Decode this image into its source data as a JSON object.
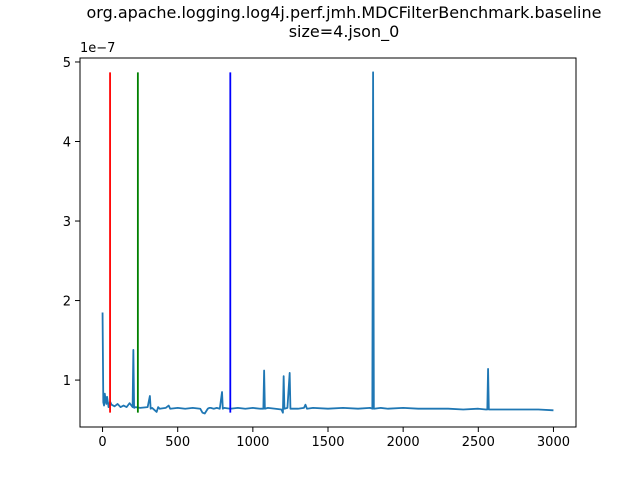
{
  "chart_data": {
    "type": "line",
    "title": "org.apache.logging.log4j.perf.jmh.MDCFilterBenchmark.baseline",
    "subtitle": "size=4.json_0",
    "xlabel": "",
    "ylabel": "",
    "y_offset_label": "1e−7",
    "xlim": [
      -150,
      3150
    ],
    "ylim": [
      4.1e-08,
      5.05e-07
    ],
    "x_ticks": [
      0,
      500,
      1000,
      1500,
      2000,
      2500,
      3000
    ],
    "x_tick_labels": [
      "0",
      "500",
      "1000",
      "1500",
      "2000",
      "2500",
      "3000"
    ],
    "y_ticks": [
      1e-07,
      2e-07,
      3e-07,
      4e-07,
      5e-07
    ],
    "y_tick_labels": [
      "1",
      "2",
      "3",
      "4",
      "5"
    ],
    "grid": false,
    "series": [
      {
        "color": "#1f77b4",
        "x": [
          0,
          5,
          10,
          15,
          20,
          25,
          30,
          40,
          50,
          60,
          80,
          100,
          120,
          140,
          160,
          180,
          200,
          205,
          210,
          220,
          250,
          300,
          315,
          320,
          330,
          360,
          370,
          380,
          420,
          440,
          450,
          500,
          550,
          600,
          650,
          665,
          680,
          700,
          710,
          720,
          740,
          760,
          780,
          795,
          800,
          810,
          850,
          900,
          950,
          1000,
          1050,
          1070,
          1075,
          1080,
          1100,
          1150,
          1190,
          1200,
          1205,
          1210,
          1230,
          1245,
          1250,
          1300,
          1340,
          1350,
          1360,
          1400,
          1500,
          1600,
          1700,
          1780,
          1795,
          1800,
          1805,
          1850,
          1900,
          2000,
          2100,
          2200,
          2300,
          2400,
          2500,
          2550,
          2560,
          2565,
          2570,
          2600,
          2700,
          2800,
          2900,
          3000
        ],
        "y": [
          1.85e-07,
          7.2e-08,
          6.8e-08,
          8.3e-08,
          7.5e-08,
          7e-08,
          7.9e-08,
          6.6e-08,
          7.3e-08,
          6.9e-08,
          6.7e-08,
          7e-08,
          6.6e-08,
          6.8e-08,
          6.6e-08,
          7.1e-08,
          6.6e-08,
          1.38e-07,
          6.5e-08,
          6.6e-08,
          6.5e-08,
          6.6e-08,
          8e-08,
          6.4e-08,
          6.5e-08,
          6e-08,
          6.6e-08,
          6.4e-08,
          6.5e-08,
          6.8e-08,
          6.4e-08,
          6.5e-08,
          6.4e-08,
          6.5e-08,
          6.4e-08,
          5.9e-08,
          5.8e-08,
          6.4e-08,
          6.5e-08,
          6.5e-08,
          6.4e-08,
          6.5e-08,
          6.4e-08,
          8.5e-08,
          6.4e-08,
          6.5e-08,
          6.4e-08,
          6.5e-08,
          6.4e-08,
          6.5e-08,
          6.4e-08,
          6.4e-08,
          1.12e-07,
          6.4e-08,
          6.5e-08,
          6.4e-08,
          6.3e-08,
          5.9e-08,
          1.05e-07,
          6.4e-08,
          6.5e-08,
          1.09e-07,
          6.4e-08,
          6.4e-08,
          6.5e-08,
          6.9e-08,
          6.4e-08,
          6.5e-08,
          6.4e-08,
          6.5e-08,
          6.4e-08,
          6.5e-08,
          6.4e-08,
          4.87e-07,
          6.4e-08,
          6.5e-08,
          6.4e-08,
          6.5e-08,
          6.4e-08,
          6.4e-08,
          6.4e-08,
          6.3e-08,
          6.4e-08,
          6.3e-08,
          6.3e-08,
          1.14e-07,
          6.3e-08,
          6.3e-08,
          6.3e-08,
          6.3e-08,
          6.3e-08,
          6.2e-08
        ]
      }
    ],
    "vlines": [
      {
        "x": 50,
        "ymin": 5.9e-08,
        "ymax": 4.87e-07,
        "color": "#ff0000"
      },
      {
        "x": 235,
        "ymin": 5.9e-08,
        "ymax": 4.87e-07,
        "color": "#008000"
      },
      {
        "x": 850,
        "ymin": 5.9e-08,
        "ymax": 4.87e-07,
        "color": "#0000ff"
      }
    ]
  }
}
